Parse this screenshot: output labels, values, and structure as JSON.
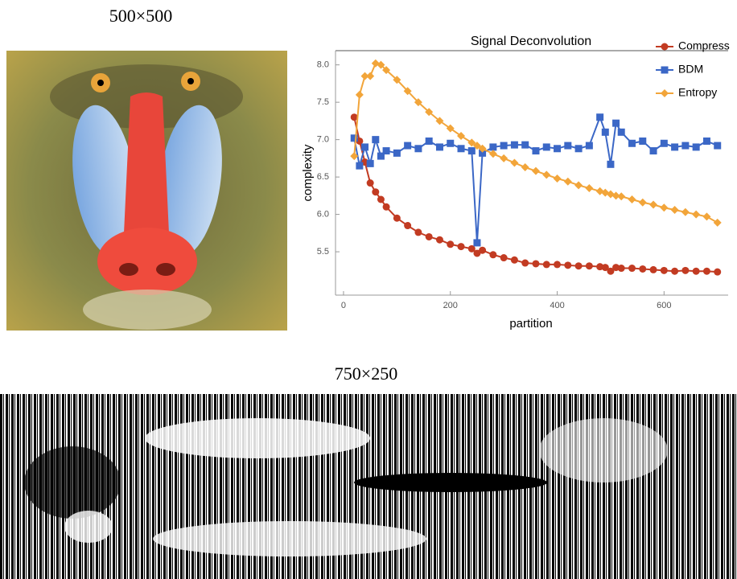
{
  "captions": [
    "500×500",
    "750×250"
  ],
  "chart_data": {
    "type": "line",
    "title": "Signal Deconvolution",
    "x_label": "partition",
    "y_label": "complexity",
    "x": [
      20,
      30,
      40,
      50,
      60,
      70,
      80,
      100,
      120,
      140,
      160,
      180,
      200,
      220,
      240,
      250,
      260,
      280,
      300,
      320,
      340,
      360,
      380,
      400,
      420,
      440,
      460,
      480,
      490,
      500,
      510,
      520,
      540,
      560,
      580,
      600,
      620,
      640,
      660,
      680,
      700
    ],
    "series": [
      {
        "name": "Compress",
        "color": "#c23b22",
        "marker": "circle",
        "values": [
          7.3,
          6.98,
          6.7,
          6.42,
          6.3,
          6.2,
          6.1,
          5.95,
          5.85,
          5.76,
          5.7,
          5.66,
          5.6,
          5.57,
          5.54,
          5.48,
          5.52,
          5.46,
          5.42,
          5.39,
          5.35,
          5.34,
          5.33,
          5.33,
          5.32,
          5.31,
          5.31,
          5.3,
          5.29,
          5.24,
          5.29,
          5.28,
          5.28,
          5.27,
          5.26,
          5.25,
          5.24,
          5.25,
          5.24,
          5.24,
          5.23
        ]
      },
      {
        "name": "BDM",
        "color": "#3b67c6",
        "marker": "square",
        "values": [
          7.02,
          6.65,
          6.9,
          6.68,
          7.0,
          6.78,
          6.85,
          6.82,
          6.92,
          6.88,
          6.98,
          6.9,
          6.95,
          6.88,
          6.85,
          5.62,
          6.82,
          6.9,
          6.92,
          6.93,
          6.93,
          6.85,
          6.9,
          6.88,
          6.92,
          6.88,
          6.92,
          7.3,
          7.1,
          6.67,
          7.22,
          7.1,
          6.95,
          6.98,
          6.85,
          6.95,
          6.9,
          6.92,
          6.9,
          6.98,
          6.92
        ]
      },
      {
        "name": "Entropy",
        "color": "#f2a53a",
        "marker": "diamond",
        "values": [
          6.78,
          7.6,
          7.85,
          7.85,
          8.02,
          8.0,
          7.93,
          7.8,
          7.65,
          7.5,
          7.37,
          7.25,
          7.15,
          7.05,
          6.96,
          6.92,
          6.88,
          6.81,
          6.75,
          6.69,
          6.63,
          6.58,
          6.53,
          6.48,
          6.44,
          6.39,
          6.35,
          6.31,
          6.29,
          6.27,
          6.25,
          6.24,
          6.2,
          6.16,
          6.13,
          6.09,
          6.06,
          6.03,
          6.0,
          5.97,
          5.89
        ]
      }
    ],
    "xlim": [
      -15,
      720
    ],
    "xticks": [
      0,
      200,
      400,
      600
    ],
    "ylim": [
      4.92,
      8.19
    ],
    "yticks": [
      5.5,
      {
        "value": 6,
        "label": "6.0"
      },
      6.5,
      {
        "value": 7,
        "label": "7.0"
      },
      7.5,
      {
        "value": 8,
        "label": "8.0"
      }
    ],
    "legend": "upper-right"
  }
}
